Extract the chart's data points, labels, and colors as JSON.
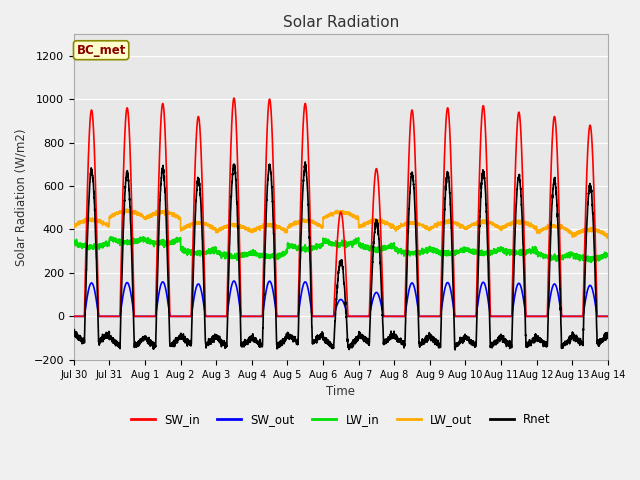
{
  "title": "Solar Radiation",
  "xlabel": "Time",
  "ylabel": "Solar Radiation (W/m2)",
  "ylim": [
    -200,
    1300
  ],
  "yticks": [
    -200,
    0,
    200,
    400,
    600,
    800,
    1000,
    1200
  ],
  "axes_bg_color": "#e8e8e8",
  "fig_bg_color": "#f0f0f0",
  "legend_label": "BC_met",
  "series": {
    "SW_in": {
      "color": "#ff0000",
      "lw": 1.2
    },
    "SW_out": {
      "color": "#0000ff",
      "lw": 1.2
    },
    "LW_in": {
      "color": "#00dd00",
      "lw": 1.2
    },
    "LW_out": {
      "color": "#ffaa00",
      "lw": 1.2
    },
    "Rnet": {
      "color": "#000000",
      "lw": 1.2
    }
  },
  "n_days": 15,
  "points_per_day": 288,
  "sw_peaks": [
    950,
    960,
    980,
    920,
    1005,
    1000,
    980,
    480,
    680,
    950,
    960,
    970,
    940,
    920,
    880
  ],
  "lw_in_base": [
    340,
    360,
    355,
    310,
    295,
    295,
    330,
    350,
    330,
    310,
    310,
    310,
    310,
    290,
    285
  ],
  "lw_out_base": [
    415,
    455,
    450,
    400,
    390,
    390,
    410,
    450,
    410,
    400,
    405,
    405,
    405,
    385,
    370
  ]
}
